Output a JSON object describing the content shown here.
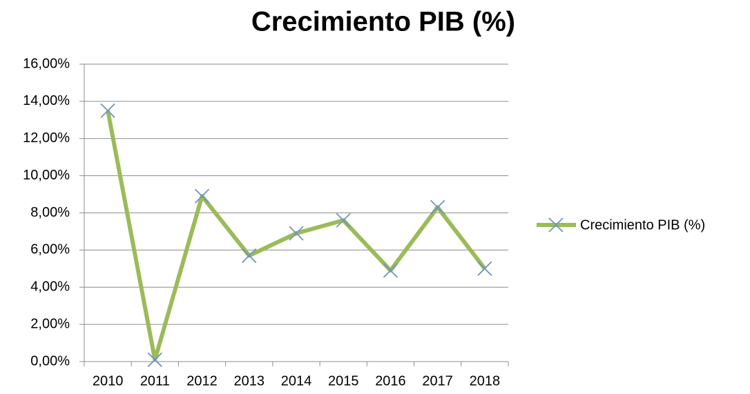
{
  "chart_data": {
    "type": "line",
    "title": "Crecimiento PIB (%)",
    "categories": [
      "2010",
      "2011",
      "2012",
      "2013",
      "2014",
      "2015",
      "2016",
      "2017",
      "2018"
    ],
    "series": [
      {
        "name": "Crecimiento PIB (%)",
        "color": "#9bbb59",
        "marker_color": "#6f93c2",
        "values": [
          13.5,
          0.1,
          8.9,
          5.7,
          6.9,
          7.6,
          4.9,
          8.3,
          5.0
        ]
      }
    ],
    "ylim": [
      0,
      16
    ],
    "yticks": [
      {
        "value": 0,
        "label": "0,00%"
      },
      {
        "value": 2,
        "label": "2,00%"
      },
      {
        "value": 4,
        "label": "4,00%"
      },
      {
        "value": 6,
        "label": "6,00%"
      },
      {
        "value": 8,
        "label": "8,00%"
      },
      {
        "value": 10,
        "label": "10,00%"
      },
      {
        "value": 12,
        "label": "12,00%"
      },
      {
        "value": 14,
        "label": "14,00%"
      },
      {
        "value": 16,
        "label": "16,00%"
      }
    ],
    "grid": true,
    "legend": "right"
  }
}
